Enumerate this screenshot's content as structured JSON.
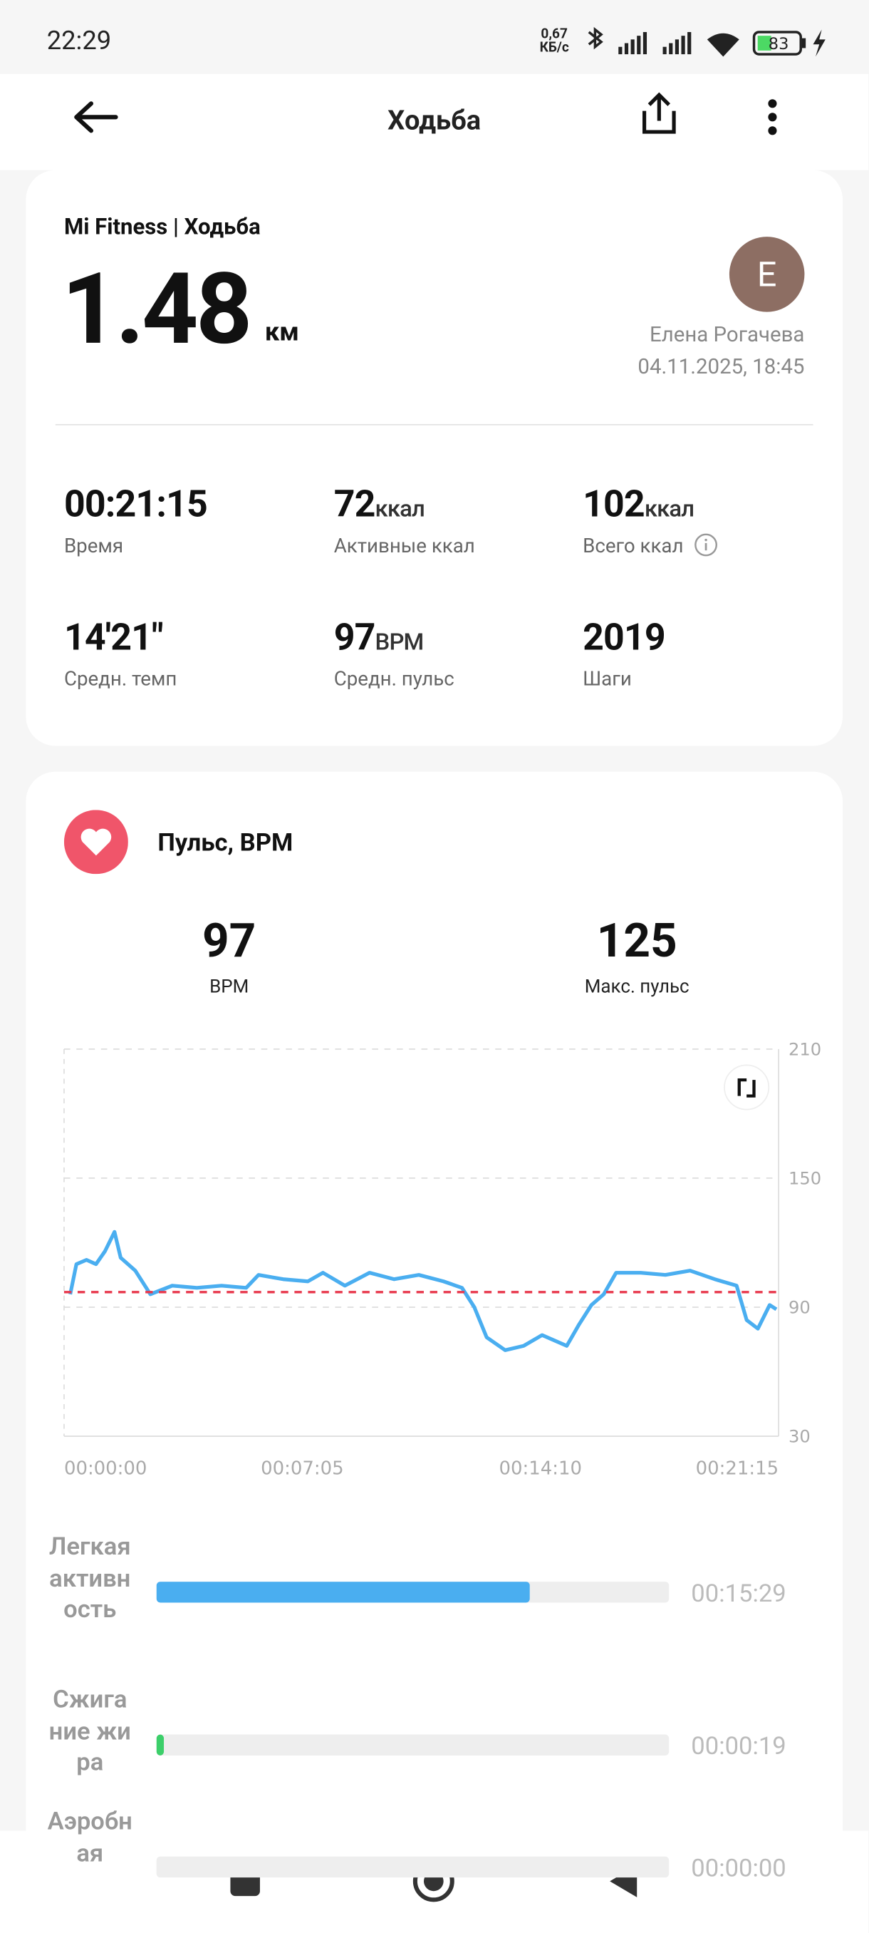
{
  "status_bar": {
    "time": "22:29",
    "net_speed": "0,67",
    "net_unit": "КБ/с",
    "battery": "83"
  },
  "header": {
    "title": "Ходьба"
  },
  "summary": {
    "source": "Mi Fitness | Ходьба",
    "distance": "1.48",
    "distance_unit": "км",
    "avatar_letter": "Е",
    "user_name": "Елена Рогачева",
    "date": "04.11.2025, 18:45"
  },
  "stats": [
    {
      "value": "00:21:15",
      "label": "Время"
    },
    {
      "value": "72",
      "unit": "ккал",
      "label": "Активные ккал"
    },
    {
      "value": "102",
      "unit": "ккал",
      "label": "Всего ккал"
    },
    {
      "value": "14'21\"",
      "label": "Средн. темп"
    },
    {
      "value": "97",
      "unit": "BPM",
      "label": "Средн. пульс"
    },
    {
      "value": "2019",
      "label": "Шаги"
    }
  ],
  "heart_rate": {
    "title": "Пульс, BPM",
    "avg": {
      "value": 97,
      "label": "BPM"
    },
    "max": {
      "value": 125,
      "label": "Макс. пульс"
    }
  },
  "chart_data": {
    "type": "line",
    "x": [
      11,
      22,
      40,
      57,
      73,
      90,
      101,
      127,
      154,
      193,
      237,
      281,
      325,
      347,
      391,
      435,
      462,
      501,
      545,
      589,
      633,
      677,
      710,
      732,
      754,
      787,
      820,
      853,
      897,
      919,
      941,
      963,
      985,
      1029,
      1073,
      1117,
      1161,
      1200,
      1218,
      1238,
      1259,
      1271
    ],
    "series": [
      {
        "color": "#4aaef0",
        "values": [
          96,
          110,
          112,
          110,
          116,
          125,
          113,
          107,
          96,
          100,
          99,
          100,
          99,
          105,
          103,
          102,
          106,
          100,
          106,
          103,
          105,
          102,
          99,
          90,
          76,
          70,
          72,
          77,
          72,
          82,
          91,
          96,
          106,
          106,
          105,
          107,
          103,
          100,
          84,
          80,
          91,
          89
        ]
      }
    ],
    "xlim": [
      0,
      1275
    ],
    "xticks": [
      {
        "value": 0,
        "label": "00:00:00"
      },
      {
        "value": 425,
        "label": "00:07:05"
      },
      {
        "value": 850,
        "label": "00:14:10"
      },
      {
        "value": 1275,
        "label": "00:21:15"
      }
    ],
    "ylim": [
      30,
      210
    ],
    "yticks": [
      30,
      90,
      150,
      210
    ],
    "grid": true,
    "avg_line_color": "#e8394d"
  },
  "zones": [
    {
      "name": "Легкая активность",
      "seconds": 929,
      "time": "00:15:29",
      "color": "#4aaef0"
    },
    {
      "name": "Сжигание жира",
      "seconds": 19,
      "time": "00:00:19",
      "color": "#3ccf6a"
    },
    {
      "name": "Аэробная",
      "seconds": 0,
      "time": "00:00:00",
      "color": "#f0b43c"
    }
  ]
}
